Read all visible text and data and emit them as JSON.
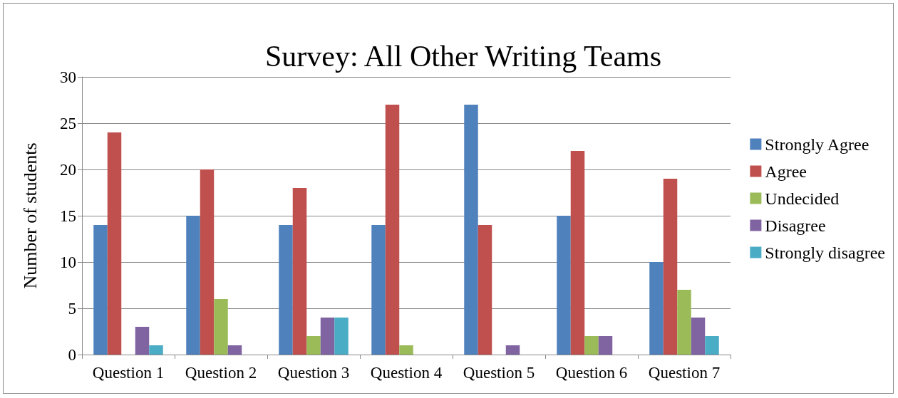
{
  "chart_data": {
    "type": "bar",
    "title": "Survey: All Other Writing Teams",
    "ylabel": "Number of students",
    "categories": [
      "Question 1",
      "Question 2",
      "Question 3",
      "Question 4",
      "Question 5",
      "Question 6",
      "Question 7"
    ],
    "series": [
      {
        "name": "Strongly Agree",
        "color": "#4f81bd",
        "values": [
          14,
          15,
          14,
          14,
          27,
          15,
          10
        ]
      },
      {
        "name": "Agree",
        "color": "#c0504d",
        "values": [
          24,
          20,
          18,
          27,
          14,
          22,
          19
        ]
      },
      {
        "name": "Undecided",
        "color": "#9bbb59",
        "values": [
          0,
          6,
          2,
          1,
          0,
          2,
          7
        ]
      },
      {
        "name": "Disagree",
        "color": "#8064a2",
        "values": [
          3,
          1,
          4,
          0,
          1,
          2,
          4
        ]
      },
      {
        "name": "Strongly disagree",
        "color": "#4bacc6",
        "values": [
          1,
          0,
          4,
          0,
          0,
          0,
          2
        ]
      }
    ],
    "ylim": [
      0,
      30
    ],
    "yticks": [
      0,
      5,
      10,
      15,
      20,
      25,
      30
    ],
    "grid": "y",
    "legend": "right"
  }
}
